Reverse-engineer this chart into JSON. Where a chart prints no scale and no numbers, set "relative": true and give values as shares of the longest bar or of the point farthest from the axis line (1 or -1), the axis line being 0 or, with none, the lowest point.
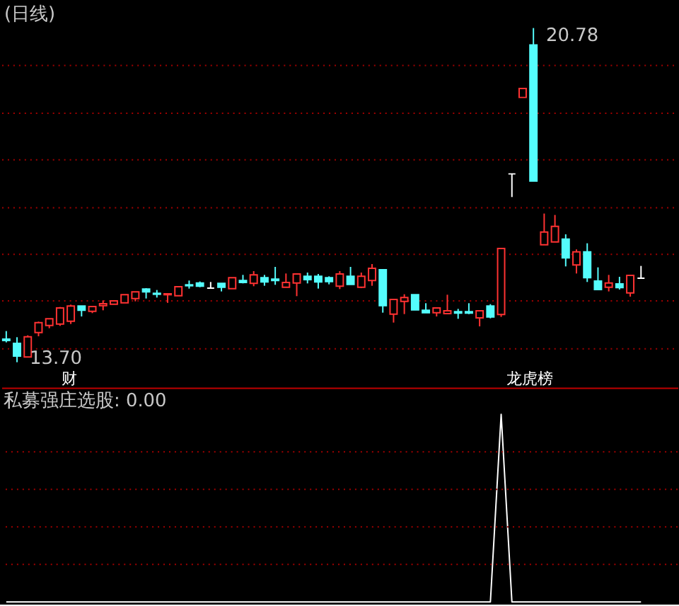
{
  "chart_data": [
    {
      "type": "candlestick",
      "title": "(日线)",
      "categories": [
        null,
        null,
        null,
        null,
        null,
        null,
        null,
        null,
        null,
        null,
        null,
        null,
        null,
        null,
        null,
        null,
        null,
        null,
        null,
        null,
        null,
        null,
        null,
        null,
        null,
        null,
        null,
        null,
        null,
        null,
        null,
        null,
        null,
        null,
        null,
        null,
        null,
        null,
        null,
        null,
        null,
        null,
        null,
        null,
        null,
        null,
        null,
        null,
        null,
        null,
        null,
        null,
        null,
        null,
        null,
        null,
        null,
        null,
        null,
        null
      ],
      "ohlc": [
        [
          14.19,
          14.36,
          14.12,
          14.16
        ],
        [
          14.1,
          14.23,
          13.7,
          13.83
        ],
        [
          13.81,
          14.27,
          13.81,
          14.24
        ],
        [
          14.33,
          14.56,
          14.25,
          14.54
        ],
        [
          14.48,
          14.62,
          14.42,
          14.62
        ],
        [
          14.51,
          14.87,
          14.47,
          14.85
        ],
        [
          14.57,
          14.92,
          14.51,
          14.89
        ],
        [
          14.89,
          14.89,
          14.67,
          14.8
        ],
        [
          14.78,
          14.88,
          14.74,
          14.88
        ],
        [
          14.9,
          15.01,
          14.8,
          14.94
        ],
        [
          14.93,
          15.0,
          14.93,
          15.0
        ],
        [
          14.96,
          15.13,
          14.96,
          15.13
        ],
        [
          15.05,
          15.19,
          14.99,
          15.19
        ],
        [
          15.25,
          15.27,
          15.05,
          15.19
        ],
        [
          15.16,
          15.23,
          15.07,
          15.14
        ],
        [
          15.13,
          15.15,
          14.96,
          15.15
        ],
        [
          15.11,
          15.3,
          15.11,
          15.3
        ],
        [
          15.34,
          15.43,
          15.26,
          15.32
        ],
        [
          15.38,
          15.41,
          15.29,
          15.31
        ],
        [
          15.27,
          15.4,
          15.27,
          15.27
        ],
        [
          15.37,
          15.37,
          15.2,
          15.29
        ],
        [
          15.26,
          15.49,
          15.26,
          15.49
        ],
        [
          15.43,
          15.55,
          15.37,
          15.39
        ],
        [
          15.37,
          15.63,
          15.31,
          15.55
        ],
        [
          15.49,
          15.55,
          15.32,
          15.4
        ],
        [
          15.46,
          15.72,
          15.34,
          15.43
        ],
        [
          15.29,
          15.58,
          15.29,
          15.39
        ],
        [
          15.38,
          15.57,
          15.1,
          15.57
        ],
        [
          15.52,
          15.6,
          15.37,
          15.45
        ],
        [
          15.52,
          15.57,
          15.26,
          15.4
        ],
        [
          15.49,
          15.52,
          15.35,
          15.41
        ],
        [
          15.31,
          15.63,
          15.25,
          15.57
        ],
        [
          15.52,
          15.72,
          15.35,
          15.35
        ],
        [
          15.29,
          15.6,
          15.27,
          15.52
        ],
        [
          15.43,
          15.78,
          15.32,
          15.69
        ],
        [
          15.66,
          15.66,
          14.75,
          14.9
        ],
        [
          14.72,
          15.03,
          14.54,
          15.03
        ],
        [
          14.99,
          15.14,
          14.72,
          15.07
        ],
        [
          15.13,
          15.13,
          14.81,
          14.81
        ],
        [
          14.8,
          14.95,
          14.75,
          14.75
        ],
        [
          14.75,
          14.85,
          14.67,
          14.85
        ],
        [
          14.73,
          15.13,
          14.73,
          14.79
        ],
        [
          14.77,
          14.83,
          14.62,
          14.74
        ],
        [
          14.77,
          14.95,
          14.72,
          14.74
        ],
        [
          14.64,
          14.79,
          14.46,
          14.79
        ],
        [
          14.89,
          14.93,
          14.63,
          14.66
        ],
        [
          14.71,
          16.11,
          14.66,
          16.11
        ],
        [
          17.69,
          17.69,
          17.2,
          17.69
        ],
        [
          19.31,
          19.5,
          19.31,
          19.5
        ],
        [
          20.42,
          20.78,
          17.54,
          17.54
        ],
        [
          16.19,
          16.85,
          16.19,
          16.46
        ],
        [
          16.25,
          16.82,
          16.25,
          16.58
        ],
        [
          16.31,
          16.41,
          15.73,
          15.91
        ],
        [
          15.76,
          16.09,
          15.58,
          16.04
        ],
        [
          16.04,
          16.22,
          15.4,
          15.49
        ],
        [
          15.42,
          15.71,
          15.24,
          15.24
        ],
        [
          15.29,
          15.55,
          15.2,
          15.38
        ],
        [
          15.36,
          15.51,
          15.24,
          15.28
        ],
        [
          15.17,
          15.54,
          15.09,
          15.54
        ],
        [
          15.48,
          15.74,
          15.48,
          15.48
        ]
      ],
      "colors": [
        "#54fcfc",
        "#54fcfc",
        "#ff3232",
        "#ff3232",
        "#ff3232",
        "#ff3232",
        "#ff3232",
        "#54fcfc",
        "#ff3232",
        "#ff3232",
        "#ff3232",
        "#ff3232",
        "#ff3232",
        "#54fcfc",
        "#54fcfc",
        "#ff3232",
        "#ff3232",
        "#54fcfc",
        "#54fcfc",
        "#ffffff",
        "#54fcfc",
        "#ff3232",
        "#54fcfc",
        "#ff3232",
        "#54fcfc",
        "#54fcfc",
        "#ff3232",
        "#ff3232",
        "#54fcfc",
        "#54fcfc",
        "#54fcfc",
        "#ff3232",
        "#54fcfc",
        "#ff3232",
        "#ff3232",
        "#54fcfc",
        "#ff3232",
        "#ff3232",
        "#54fcfc",
        "#54fcfc",
        "#ff3232",
        "#ff3232",
        "#54fcfc",
        "#54fcfc",
        "#ff3232",
        "#54fcfc",
        "#ff3232",
        "#ffffff",
        "#ff3232",
        "#54fcfc",
        "#ff3232",
        "#ff3232",
        "#54fcfc",
        "#ff3232",
        "#54fcfc",
        "#54fcfc",
        "#ff3232",
        "#54fcfc",
        "#ff3232",
        "#ffffff"
      ],
      "yticks": [
        {
          "value": 14,
          "label": null
        },
        {
          "value": 15,
          "label": null
        },
        {
          "value": 16,
          "label": null
        },
        {
          "value": 17,
          "label": null
        },
        {
          "value": 18,
          "label": null
        },
        {
          "value": 19,
          "label": null
        },
        {
          "value": 20,
          "label": null
        }
      ],
      "grid": "y",
      "tick_labels": false,
      "annotations": [
        "20.78",
        "13.70",
        "财",
        "龙虎榜"
      ]
    },
    {
      "type": "line",
      "title": "私募强庄选股: 0.00",
      "categories": [
        null,
        null,
        null,
        null,
        null,
        null,
        null,
        null,
        null,
        null,
        null,
        null,
        null,
        null,
        null,
        null,
        null,
        null,
        null,
        null,
        null,
        null,
        null,
        null,
        null,
        null,
        null,
        null,
        null,
        null,
        null,
        null,
        null,
        null,
        null,
        null,
        null,
        null,
        null,
        null,
        null,
        null,
        null,
        null,
        null,
        null,
        null,
        null,
        null,
        null,
        null,
        null,
        null,
        null,
        null,
        null,
        null,
        null,
        null,
        null
      ],
      "values": [
        0,
        0,
        0,
        0,
        0,
        0,
        0,
        0,
        0,
        0,
        0,
        0,
        0,
        0,
        0,
        0,
        0,
        0,
        0,
        0,
        0,
        0,
        0,
        0,
        0,
        0,
        0,
        0,
        0,
        0,
        0,
        0,
        0,
        0,
        0,
        0,
        0,
        0,
        0,
        0,
        0,
        0,
        0,
        0,
        0,
        0,
        1,
        0,
        0,
        0,
        0,
        0,
        0,
        0,
        0,
        0,
        0,
        0,
        0,
        0
      ],
      "color": "#ffffff",
      "relative": true,
      "ref_lines": [
        {
          "axis": "y",
          "value": 0.2,
          "color": "#a00000",
          "line_style": "dotted"
        },
        {
          "axis": "y",
          "value": 0.4,
          "color": "#a00000",
          "line_style": "dotted"
        },
        {
          "axis": "y",
          "value": 0.6,
          "color": "#a00000",
          "line_style": "dotted"
        },
        {
          "axis": "y",
          "value": 0.8,
          "color": "#a00000",
          "line_style": "dotted"
        }
      ],
      "tick_labels": false
    }
  ]
}
